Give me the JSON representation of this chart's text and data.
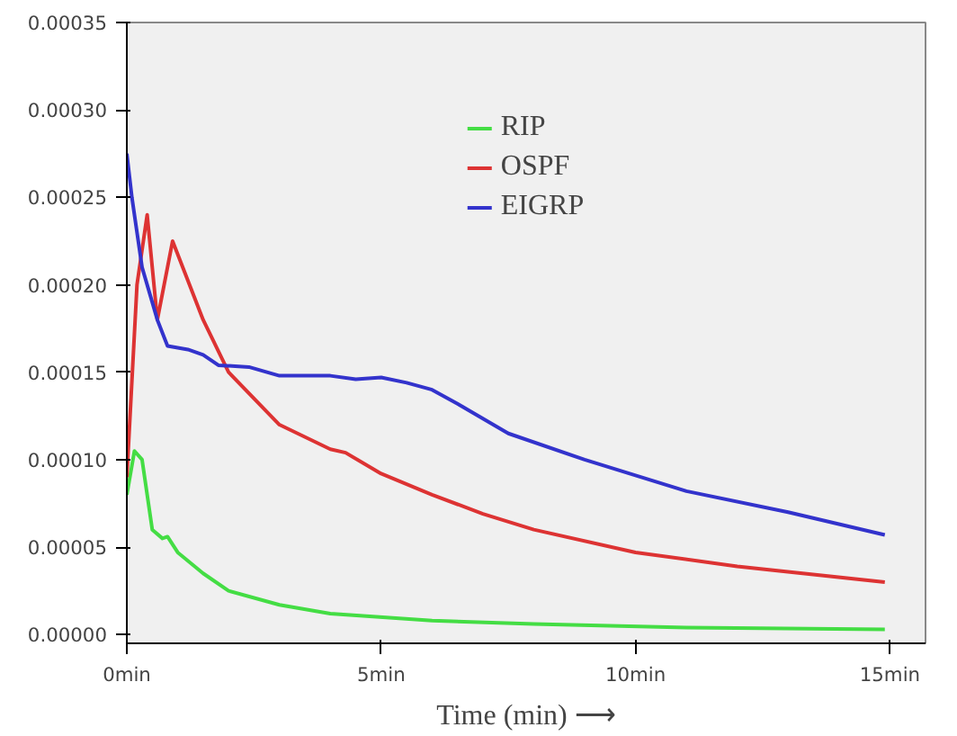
{
  "chart_data": {
    "type": "line",
    "xlabel": "Time (min) ⟶",
    "xlim": [
      0,
      15.7
    ],
    "ylim": [
      -5e-06,
      0.00035
    ],
    "xticks": [
      {
        "value": 0,
        "label": "0min"
      },
      {
        "value": 5,
        "label": "5min"
      },
      {
        "value": 10,
        "label": "10min"
      },
      {
        "value": 15,
        "label": "15min"
      }
    ],
    "yticks": [
      {
        "value": 0,
        "label": "0.00000"
      },
      {
        "value": 5e-05,
        "label": "0.00005"
      },
      {
        "value": 0.0001,
        "label": "0.00010"
      },
      {
        "value": 0.00015,
        "label": "0.00015"
      },
      {
        "value": 0.0002,
        "label": "0.00020"
      },
      {
        "value": 0.00025,
        "label": "0.00025"
      },
      {
        "value": 0.0003,
        "label": "0.00030"
      },
      {
        "value": 0.00035,
        "label": "0.00035"
      }
    ],
    "grid": false,
    "legend": "top",
    "series": [
      {
        "name": "RIP",
        "color": "#44dd44",
        "x": [
          0,
          0.15,
          0.3,
          0.5,
          0.7,
          0.8,
          1,
          1.5,
          2,
          3,
          4,
          6,
          8,
          11,
          14.9
        ],
        "values": [
          8e-05,
          0.000105,
          0.0001,
          6e-05,
          5.5e-05,
          5.6e-05,
          4.7e-05,
          3.5e-05,
          2.5e-05,
          1.7e-05,
          1.2e-05,
          8e-06,
          6e-06,
          4e-06,
          3e-06
        ]
      },
      {
        "name": "OSPF",
        "color": "#dd3333",
        "x": [
          0,
          0.2,
          0.4,
          0.6,
          0.9,
          1.5,
          2,
          3,
          4,
          4.3,
          5,
          6,
          7,
          8,
          10,
          12,
          14.9
        ],
        "values": [
          9e-05,
          0.0002,
          0.00024,
          0.00018,
          0.000225,
          0.00018,
          0.00015,
          0.00012,
          0.000106,
          0.000104,
          9.2e-05,
          8e-05,
          6.9e-05,
          6e-05,
          4.7e-05,
          3.9e-05,
          3e-05
        ]
      },
      {
        "name": "EIGRP",
        "color": "#3333cc",
        "x": [
          0,
          0.1,
          0.3,
          0.6,
          0.8,
          1.2,
          1.5,
          1.8,
          2.4,
          3,
          4,
          4.5,
          5,
          5.5,
          6,
          6.5,
          7.5,
          9,
          11,
          13,
          14.9
        ],
        "values": [
          0.000275,
          0.00025,
          0.00021,
          0.00018,
          0.000165,
          0.000163,
          0.00016,
          0.000154,
          0.000153,
          0.000148,
          0.000148,
          0.000146,
          0.000147,
          0.000144,
          0.00014,
          0.000132,
          0.000115,
          0.0001,
          8.2e-05,
          7e-05,
          5.7e-05
        ]
      }
    ]
  }
}
